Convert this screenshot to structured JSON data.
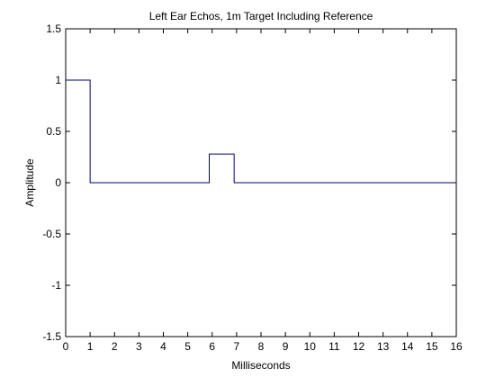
{
  "chart_data": {
    "type": "line",
    "title": "Left Ear Echos, 1m Target Including Reference",
    "xlabel": "Milliseconds",
    "ylabel": "Amplitude",
    "xlim": [
      0,
      16
    ],
    "ylim": [
      -1.5,
      1.5
    ],
    "x_ticks": [
      0,
      1,
      2,
      3,
      4,
      5,
      6,
      7,
      8,
      9,
      10,
      11,
      12,
      13,
      14,
      15,
      16
    ],
    "x_tick_labels": [
      "0",
      "1",
      "2",
      "3",
      "4",
      "5",
      "6",
      "7",
      "8",
      "9",
      "10",
      "11",
      "12",
      "13",
      "14",
      "15",
      "16"
    ],
    "y_ticks": [
      1.5,
      1,
      0.5,
      0,
      -0.5,
      -1,
      -1.5
    ],
    "y_tick_labels": [
      "1.5",
      "1",
      "0.5",
      "0",
      "-0.5",
      "-1",
      "-1.5"
    ],
    "grid": false,
    "series": [
      {
        "color": "#00007f",
        "x": [
          0,
          1,
          1,
          5.88,
          5.88,
          6.9,
          6.9,
          16
        ],
        "y": [
          1,
          1,
          0,
          0,
          0.28,
          0.28,
          0,
          0
        ]
      }
    ]
  }
}
